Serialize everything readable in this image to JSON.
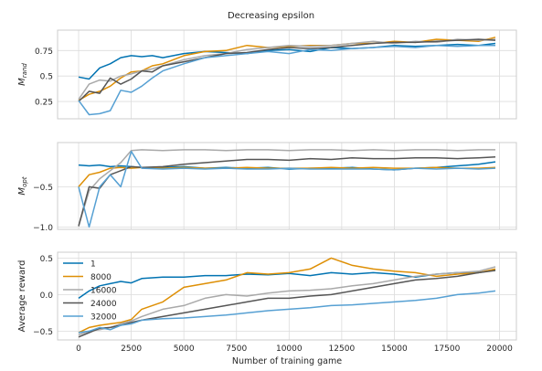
{
  "figure_title": "Decreasing epsilon",
  "xlabel": "Number of training game",
  "x_ticks": [
    0,
    2500,
    5000,
    7500,
    10000,
    12500,
    15000,
    17500,
    20000
  ],
  "legend": {
    "placement": "upper-left",
    "entries": [
      {
        "label": "1",
        "color": "#0173b2"
      },
      {
        "label": "8000",
        "color": "#de8f05"
      },
      {
        "label": "16000",
        "color": "#a9a9a9"
      },
      {
        "label": "24000",
        "color": "#555555"
      },
      {
        "label": "32000",
        "color": "#56a0d3"
      }
    ]
  },
  "chart_data": [
    {
      "type": "line",
      "ylabel": "M_rand",
      "ylim": [
        0.08,
        0.95
      ],
      "y_ticks": [
        0.25,
        0.5,
        0.75
      ],
      "grid": true,
      "xlim": [
        -1000,
        20800
      ],
      "series": [
        {
          "name": "1",
          "color": "#0173b2",
          "x": [
            0,
            500,
            1000,
            1500,
            2000,
            2500,
            3000,
            3500,
            4000,
            5000,
            6000,
            7000,
            8000,
            9000,
            10000,
            11000,
            12000,
            13000,
            14000,
            15000,
            16000,
            17000,
            18000,
            19000,
            19800
          ],
          "y": [
            0.49,
            0.47,
            0.58,
            0.62,
            0.68,
            0.7,
            0.69,
            0.7,
            0.68,
            0.72,
            0.74,
            0.73,
            0.72,
            0.75,
            0.76,
            0.74,
            0.78,
            0.77,
            0.78,
            0.8,
            0.79,
            0.8,
            0.81,
            0.8,
            0.82
          ]
        },
        {
          "name": "8000",
          "color": "#de8f05",
          "x": [
            0,
            500,
            1000,
            1500,
            2000,
            2500,
            3000,
            3500,
            4000,
            5000,
            6000,
            7000,
            8000,
            9000,
            10000,
            11000,
            12000,
            13000,
            14000,
            15000,
            16000,
            17000,
            18000,
            19000,
            19800
          ],
          "y": [
            0.26,
            0.32,
            0.35,
            0.4,
            0.48,
            0.54,
            0.55,
            0.6,
            0.62,
            0.7,
            0.74,
            0.75,
            0.8,
            0.78,
            0.79,
            0.8,
            0.8,
            0.82,
            0.82,
            0.84,
            0.83,
            0.86,
            0.85,
            0.84,
            0.88
          ]
        },
        {
          "name": "16000",
          "color": "#a9a9a9",
          "x": [
            0,
            500,
            1000,
            1500,
            2000,
            2500,
            3000,
            3500,
            4000,
            5000,
            6000,
            7000,
            8000,
            9000,
            10000,
            11000,
            12000,
            13000,
            14000,
            15000,
            16000,
            17000,
            18000,
            19000,
            19800
          ],
          "y": [
            0.27,
            0.42,
            0.46,
            0.45,
            0.5,
            0.52,
            0.55,
            0.57,
            0.6,
            0.66,
            0.7,
            0.72,
            0.76,
            0.78,
            0.8,
            0.79,
            0.8,
            0.82,
            0.84,
            0.82,
            0.84,
            0.83,
            0.86,
            0.85,
            0.86
          ]
        },
        {
          "name": "24000",
          "color": "#555555",
          "x": [
            0,
            500,
            1000,
            1500,
            2000,
            2500,
            3000,
            3500,
            4000,
            5000,
            6000,
            7000,
            8000,
            9000,
            10000,
            11000,
            12000,
            13000,
            14000,
            15000,
            16000,
            17000,
            18000,
            19000,
            19800
          ],
          "y": [
            0.25,
            0.35,
            0.33,
            0.48,
            0.42,
            0.47,
            0.55,
            0.54,
            0.6,
            0.64,
            0.68,
            0.72,
            0.73,
            0.76,
            0.78,
            0.77,
            0.78,
            0.8,
            0.82,
            0.83,
            0.83,
            0.84,
            0.85,
            0.86,
            0.85
          ]
        },
        {
          "name": "32000",
          "color": "#56a0d3",
          "x": [
            0,
            500,
            1000,
            1500,
            2000,
            2500,
            3000,
            3500,
            4000,
            5000,
            6000,
            7000,
            8000,
            9000,
            10000,
            11000,
            12000,
            13000,
            14000,
            15000,
            16000,
            17000,
            18000,
            19000,
            19800
          ],
          "y": [
            0.26,
            0.12,
            0.13,
            0.16,
            0.36,
            0.34,
            0.4,
            0.48,
            0.55,
            0.62,
            0.68,
            0.7,
            0.72,
            0.74,
            0.72,
            0.76,
            0.75,
            0.77,
            0.78,
            0.79,
            0.78,
            0.8,
            0.79,
            0.8,
            0.8
          ]
        }
      ]
    },
    {
      "type": "line",
      "ylabel": "M_opt",
      "ylim": [
        -1.03,
        0.05
      ],
      "y_ticks": [
        -0.5,
        -1.0
      ],
      "y_tick_labels": [
        "−0.5",
        "−1.0"
      ],
      "grid": true,
      "xlim": [
        -1000,
        20800
      ],
      "series": [
        {
          "name": "1",
          "color": "#0173b2",
          "x": [
            0,
            500,
            1000,
            1500,
            2000,
            2500,
            3000,
            4000,
            5000,
            6000,
            7000,
            8000,
            9000,
            10000,
            11000,
            12000,
            13000,
            14000,
            15000,
            16000,
            17000,
            18000,
            19000,
            19800
          ],
          "y": [
            -0.23,
            -0.24,
            -0.23,
            -0.25,
            -0.24,
            -0.25,
            -0.26,
            -0.26,
            -0.25,
            -0.27,
            -0.26,
            -0.27,
            -0.26,
            -0.28,
            -0.27,
            -0.27,
            -0.26,
            -0.28,
            -0.29,
            -0.27,
            -0.26,
            -0.24,
            -0.22,
            -0.19
          ]
        },
        {
          "name": "8000",
          "color": "#de8f05",
          "x": [
            0,
            500,
            1000,
            1500,
            2000,
            2500,
            3000,
            4000,
            5000,
            6000,
            7000,
            8000,
            9000,
            10000,
            11000,
            12000,
            13000,
            14000,
            15000,
            16000,
            17000,
            18000,
            19000,
            19800
          ],
          "y": [
            -0.5,
            -0.35,
            -0.32,
            -0.27,
            -0.26,
            -0.27,
            -0.26,
            -0.27,
            -0.26,
            -0.27,
            -0.27,
            -0.26,
            -0.27,
            -0.27,
            -0.27,
            -0.26,
            -0.27,
            -0.26,
            -0.27,
            -0.27,
            -0.26,
            -0.27,
            -0.27,
            -0.26
          ]
        },
        {
          "name": "16000",
          "color": "#a9a9a9",
          "x": [
            0,
            500,
            1000,
            1500,
            2000,
            2500,
            3000,
            4000,
            5000,
            6000,
            7000,
            8000,
            9000,
            10000,
            11000,
            12000,
            13000,
            14000,
            15000,
            16000,
            17000,
            18000,
            19000,
            19800
          ],
          "y": [
            -0.99,
            -0.55,
            -0.4,
            -0.3,
            -0.2,
            -0.05,
            -0.04,
            -0.05,
            -0.04,
            -0.04,
            -0.05,
            -0.04,
            -0.04,
            -0.05,
            -0.04,
            -0.04,
            -0.05,
            -0.04,
            -0.05,
            -0.04,
            -0.04,
            -0.05,
            -0.04,
            -0.04
          ]
        },
        {
          "name": "24000",
          "color": "#555555",
          "x": [
            0,
            500,
            1000,
            1500,
            2000,
            2500,
            3000,
            4000,
            5000,
            6000,
            7000,
            8000,
            9000,
            10000,
            11000,
            12000,
            13000,
            14000,
            15000,
            16000,
            17000,
            18000,
            19000,
            19800
          ],
          "y": [
            -0.99,
            -0.5,
            -0.52,
            -0.35,
            -0.3,
            -0.25,
            -0.26,
            -0.25,
            -0.22,
            -0.2,
            -0.18,
            -0.16,
            -0.16,
            -0.17,
            -0.15,
            -0.16,
            -0.14,
            -0.15,
            -0.15,
            -0.14,
            -0.14,
            -0.15,
            -0.14,
            -0.13
          ]
        },
        {
          "name": "32000",
          "color": "#56a0d3",
          "x": [
            0,
            500,
            1000,
            1500,
            2000,
            2500,
            3000,
            4000,
            5000,
            6000,
            7000,
            8000,
            9000,
            10000,
            11000,
            12000,
            13000,
            14000,
            15000,
            16000,
            17000,
            18000,
            19000,
            19800
          ],
          "y": [
            -0.5,
            -1.0,
            -0.5,
            -0.35,
            -0.5,
            -0.06,
            -0.27,
            -0.28,
            -0.27,
            -0.28,
            -0.27,
            -0.28,
            -0.28,
            -0.27,
            -0.28,
            -0.28,
            -0.28,
            -0.28,
            -0.29,
            -0.27,
            -0.28,
            -0.27,
            -0.28,
            -0.27
          ]
        }
      ]
    },
    {
      "type": "line",
      "ylabel": "Average reward",
      "ylim": [
        -0.62,
        0.58
      ],
      "y_ticks": [
        0.5,
        0.0,
        -0.5
      ],
      "y_tick_labels": [
        "0.5",
        "0.0",
        "−0.5"
      ],
      "grid": true,
      "xlim": [
        -1000,
        20800
      ],
      "series": [
        {
          "name": "1",
          "color": "#0173b2",
          "x": [
            0,
            500,
            1000,
            1500,
            2000,
            2500,
            3000,
            4000,
            5000,
            6000,
            7000,
            8000,
            9000,
            10000,
            11000,
            12000,
            13000,
            14000,
            15000,
            16000,
            17000,
            18000,
            19000,
            19800
          ],
          "y": [
            -0.05,
            0.05,
            0.12,
            0.15,
            0.18,
            0.16,
            0.22,
            0.24,
            0.24,
            0.26,
            0.26,
            0.28,
            0.27,
            0.29,
            0.26,
            0.3,
            0.28,
            0.3,
            0.28,
            0.24,
            0.28,
            0.3,
            0.3,
            0.34
          ]
        },
        {
          "name": "8000",
          "color": "#de8f05",
          "x": [
            0,
            500,
            1000,
            1500,
            2000,
            2500,
            3000,
            4000,
            5000,
            6000,
            7000,
            8000,
            9000,
            10000,
            11000,
            12000,
            13000,
            14000,
            15000,
            16000,
            17000,
            18000,
            19000,
            19800
          ],
          "y": [
            -0.52,
            -0.45,
            -0.42,
            -0.4,
            -0.38,
            -0.34,
            -0.2,
            -0.1,
            0.1,
            0.15,
            0.2,
            0.3,
            0.28,
            0.3,
            0.35,
            0.5,
            0.4,
            0.35,
            0.32,
            0.3,
            0.25,
            0.28,
            0.3,
            0.35
          ]
        },
        {
          "name": "16000",
          "color": "#a9a9a9",
          "x": [
            0,
            500,
            1000,
            1500,
            2000,
            2500,
            3000,
            4000,
            5000,
            6000,
            7000,
            8000,
            9000,
            10000,
            11000,
            12000,
            13000,
            14000,
            15000,
            16000,
            17000,
            18000,
            19000,
            19800
          ],
          "y": [
            -0.55,
            -0.5,
            -0.48,
            -0.45,
            -0.4,
            -0.36,
            -0.3,
            -0.2,
            -0.15,
            -0.05,
            0.0,
            -0.02,
            0.02,
            0.05,
            0.06,
            0.08,
            0.12,
            0.15,
            0.2,
            0.25,
            0.28,
            0.3,
            0.32,
            0.38
          ]
        },
        {
          "name": "24000",
          "color": "#555555",
          "x": [
            0,
            500,
            1000,
            1500,
            2000,
            2500,
            3000,
            4000,
            5000,
            6000,
            7000,
            8000,
            9000,
            10000,
            11000,
            12000,
            13000,
            14000,
            15000,
            16000,
            17000,
            18000,
            19000,
            19800
          ],
          "y": [
            -0.58,
            -0.52,
            -0.46,
            -0.45,
            -0.42,
            -0.38,
            -0.35,
            -0.3,
            -0.25,
            -0.2,
            -0.15,
            -0.1,
            -0.05,
            -0.05,
            -0.02,
            0.0,
            0.05,
            0.1,
            0.15,
            0.2,
            0.22,
            0.25,
            0.3,
            0.33
          ]
        },
        {
          "name": "32000",
          "color": "#56a0d3",
          "x": [
            0,
            500,
            1000,
            1500,
            2000,
            2500,
            3000,
            4000,
            5000,
            6000,
            7000,
            8000,
            9000,
            10000,
            11000,
            12000,
            13000,
            14000,
            15000,
            16000,
            17000,
            18000,
            19000,
            19800
          ],
          "y": [
            -0.52,
            -0.5,
            -0.45,
            -0.48,
            -0.42,
            -0.4,
            -0.35,
            -0.33,
            -0.32,
            -0.3,
            -0.28,
            -0.25,
            -0.22,
            -0.2,
            -0.18,
            -0.15,
            -0.14,
            -0.12,
            -0.1,
            -0.08,
            -0.05,
            0.0,
            0.02,
            0.05
          ]
        }
      ]
    }
  ]
}
